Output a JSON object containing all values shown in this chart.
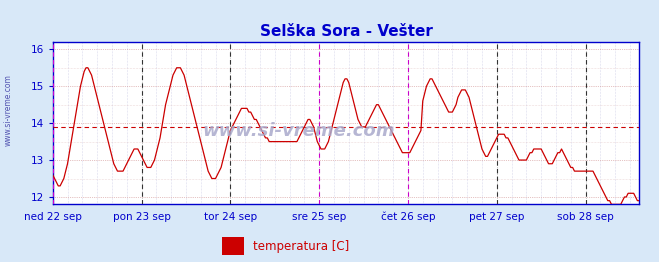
{
  "title": "Selška Sora - Vešter",
  "title_color": "#0000cc",
  "ylabel_text": "temperatura [C]",
  "legend_color": "#cc0000",
  "bg_color": "#d8e8f8",
  "plot_bg": "#ffffff",
  "line_color": "#cc0000",
  "dashed_line_y": 13.9,
  "dashed_line_color": "#cc0000",
  "ylim": [
    11.8,
    16.2
  ],
  "yticks": [
    12,
    13,
    14,
    15,
    16
  ],
  "vline_color_magenta": "#cc00cc",
  "vline_color_black": "#333333",
  "watermark": "www.si-vreme.com",
  "watermark_color": "#aaaacc",
  "xlabel_color": "#0000cc",
  "day_labels": [
    "ned 22 sep",
    "pon 23 sep",
    "tor 24 sep",
    "sre 25 sep",
    "čet 26 sep",
    "pet 27 sep",
    "sob 28 sep"
  ],
  "day_positions": [
    0,
    48,
    96,
    144,
    192,
    240,
    288
  ],
  "magenta_vlines": [
    0,
    144,
    192,
    336
  ],
  "black_vlines": [
    48,
    96,
    240,
    288
  ],
  "n_points": 337,
  "temperature": [
    12.6,
    12.5,
    12.4,
    12.3,
    12.3,
    12.4,
    12.5,
    12.7,
    12.9,
    13.2,
    13.5,
    13.8,
    14.1,
    14.4,
    14.7,
    15.0,
    15.2,
    15.4,
    15.5,
    15.5,
    15.4,
    15.3,
    15.1,
    14.9,
    14.7,
    14.5,
    14.3,
    14.1,
    13.9,
    13.7,
    13.5,
    13.3,
    13.1,
    12.9,
    12.8,
    12.7,
    12.7,
    12.7,
    12.7,
    12.8,
    12.9,
    13.0,
    13.1,
    13.2,
    13.3,
    13.3,
    13.3,
    13.2,
    13.1,
    13.0,
    12.9,
    12.8,
    12.8,
    12.8,
    12.9,
    13.0,
    13.2,
    13.4,
    13.6,
    13.9,
    14.2,
    14.5,
    14.7,
    14.9,
    15.1,
    15.3,
    15.4,
    15.5,
    15.5,
    15.5,
    15.4,
    15.3,
    15.1,
    14.9,
    14.7,
    14.5,
    14.3,
    14.1,
    13.9,
    13.7,
    13.5,
    13.3,
    13.1,
    12.9,
    12.7,
    12.6,
    12.5,
    12.5,
    12.5,
    12.6,
    12.7,
    12.8,
    13.0,
    13.2,
    13.4,
    13.6,
    13.8,
    13.9,
    14.0,
    14.1,
    14.2,
    14.3,
    14.4,
    14.4,
    14.4,
    14.4,
    14.3,
    14.3,
    14.2,
    14.1,
    14.1,
    14.0,
    13.9,
    13.8,
    13.7,
    13.6,
    13.6,
    13.5,
    13.5,
    13.5,
    13.5,
    13.5,
    13.5,
    13.5,
    13.5,
    13.5,
    13.5,
    13.5,
    13.5,
    13.5,
    13.5,
    13.5,
    13.5,
    13.6,
    13.7,
    13.8,
    13.9,
    14.0,
    14.1,
    14.1,
    14.0,
    13.9,
    13.7,
    13.5,
    13.4,
    13.3,
    13.3,
    13.3,
    13.4,
    13.5,
    13.7,
    13.9,
    14.1,
    14.3,
    14.5,
    14.7,
    14.9,
    15.1,
    15.2,
    15.2,
    15.1,
    14.9,
    14.7,
    14.5,
    14.3,
    14.1,
    14.0,
    13.9,
    13.9,
    13.9,
    14.0,
    14.1,
    14.2,
    14.3,
    14.4,
    14.5,
    14.5,
    14.4,
    14.3,
    14.2,
    14.1,
    14.0,
    13.9,
    13.8,
    13.7,
    13.6,
    13.5,
    13.4,
    13.3,
    13.2,
    13.2,
    13.2,
    13.2,
    13.2,
    13.3,
    13.4,
    13.5,
    13.6,
    13.7,
    13.8,
    14.6,
    14.8,
    15.0,
    15.1,
    15.2,
    15.2,
    15.1,
    15.0,
    14.9,
    14.8,
    14.7,
    14.6,
    14.5,
    14.4,
    14.3,
    14.3,
    14.3,
    14.4,
    14.5,
    14.7,
    14.8,
    14.9,
    14.9,
    14.9,
    14.8,
    14.7,
    14.5,
    14.3,
    14.1,
    13.9,
    13.7,
    13.5,
    13.3,
    13.2,
    13.1,
    13.1,
    13.2,
    13.3,
    13.4,
    13.5,
    13.6,
    13.7,
    13.7,
    13.7,
    13.7,
    13.6,
    13.6,
    13.5,
    13.4,
    13.3,
    13.2,
    13.1,
    13.0,
    13.0,
    13.0,
    13.0,
    13.0,
    13.1,
    13.2,
    13.2,
    13.3,
    13.3,
    13.3,
    13.3,
    13.3,
    13.2,
    13.1,
    13.0,
    12.9,
    12.9,
    12.9,
    13.0,
    13.1,
    13.2,
    13.2,
    13.3,
    13.2,
    13.1,
    13.0,
    12.9,
    12.8,
    12.8,
    12.7,
    12.7,
    12.7,
    12.7,
    12.7,
    12.7,
    12.7,
    12.7,
    12.7,
    12.7,
    12.7,
    12.6,
    12.5,
    12.4,
    12.3,
    12.2,
    12.1,
    12.0,
    11.9,
    11.9,
    11.8,
    11.8,
    11.8,
    11.8,
    11.8,
    11.8,
    11.9,
    12.0,
    12.0,
    12.1,
    12.1,
    12.1,
    12.1,
    12.0,
    11.9,
    11.9
  ]
}
